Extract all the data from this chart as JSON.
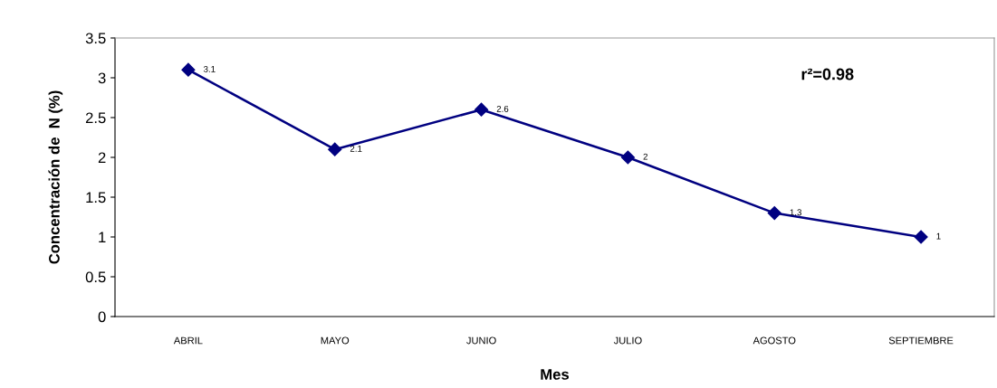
{
  "chart_data": {
    "type": "line",
    "xlabel": "Mes",
    "ylabel": "Concentración de  N (%)",
    "categories": [
      "ABRIL",
      "MAYO",
      "JUNIO",
      "JULIO",
      "AGOSTO",
      "SEPTIEMBRE"
    ],
    "series": [
      {
        "color": "#000080",
        "values": [
          3.1,
          2.1,
          2.6,
          2,
          1.3,
          1
        ]
      }
    ],
    "ylim": [
      0,
      3.5
    ],
    "yticks": [
      0,
      0.5,
      1,
      1.5,
      2,
      2.5,
      3,
      3.5
    ],
    "annotations": [
      "r²=0.98"
    ],
    "data_labels": true,
    "marker": "diamond",
    "line_style": "solid",
    "grid": false,
    "legend": false
  }
}
